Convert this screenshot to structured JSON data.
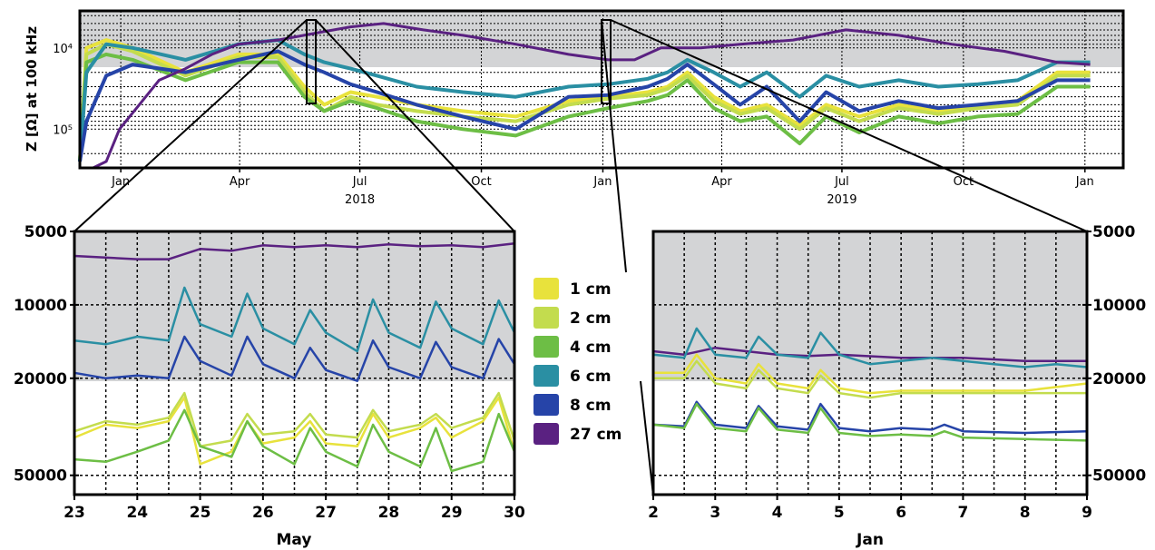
{
  "colors": {
    "1 cm": "#e8e23c",
    "2 cm": "#c3dc4e",
    "4 cm": "#6dbe45",
    "6 cm": "#2a8fa3",
    "8 cm": "#2644a8",
    "27 cm": "#5a2181",
    "band": "#d3d4d6"
  },
  "chart_data": [
    {
      "name": "overview",
      "type": "line",
      "ylabel": "Z [Ω] at 100 kHz",
      "y_scale": "log-inverted",
      "ylim": [
        300000,
        3500
      ],
      "shaded_band": [
        5000,
        20000
      ],
      "y_tick_labels": [
        "10⁴",
        "10⁵"
      ],
      "y_tick_values": [
        10000,
        100000
      ],
      "x_tick_labels": [
        "Jan",
        "Apr",
        "Jul",
        "Oct",
        "Jan",
        "Apr",
        "Jul",
        "Oct",
        "Jan"
      ],
      "x_tick_days": [
        31,
        121,
        212,
        304,
        396,
        486,
        577,
        669,
        761
      ],
      "x_year_labels": [
        "2018",
        "2019"
      ],
      "x_year_days": [
        212,
        577
      ],
      "xlim_days": [
        0,
        790
      ],
      "series": [
        {
          "name": "1 cm",
          "x_days": [
            0,
            5,
            20,
            40,
            80,
            120,
            150,
            170,
            185,
            205,
            225,
            255,
            290,
            330,
            370,
            400,
            430,
            445,
            460,
            480,
            500,
            520,
            545,
            565,
            590,
            620,
            650,
            680,
            710,
            740,
            765
          ],
          "y": [
            250000,
            10000,
            8000,
            10000,
            20000,
            12000,
            12000,
            30000,
            50000,
            35000,
            40000,
            50000,
            60000,
            70000,
            45000,
            40000,
            35000,
            30000,
            20000,
            40000,
            60000,
            50000,
            90000,
            50000,
            70000,
            50000,
            60000,
            50000,
            45000,
            20000,
            20000
          ]
        },
        {
          "name": "2 cm",
          "x_days": [
            0,
            5,
            20,
            40,
            80,
            120,
            150,
            170,
            185,
            205,
            225,
            255,
            290,
            330,
            370,
            400,
            430,
            445,
            460,
            480,
            500,
            520,
            545,
            565,
            590,
            620,
            650,
            680,
            710,
            740,
            765
          ],
          "y": [
            250000,
            12000,
            9000,
            11000,
            22000,
            13000,
            13000,
            35000,
            60000,
            40000,
            50000,
            60000,
            70000,
            80000,
            50000,
            42000,
            38000,
            32000,
            22000,
            45000,
            65000,
            55000,
            100000,
            55000,
            80000,
            55000,
            65000,
            55000,
            50000,
            22000,
            22000
          ]
        },
        {
          "name": "4 cm",
          "x_days": [
            0,
            5,
            20,
            40,
            80,
            120,
            150,
            170,
            185,
            205,
            225,
            255,
            290,
            330,
            370,
            400,
            430,
            445,
            460,
            480,
            500,
            520,
            545,
            565,
            590,
            620,
            650,
            680,
            710,
            740,
            765
          ],
          "y": [
            250000,
            15000,
            12000,
            14000,
            25000,
            15000,
            15000,
            40000,
            60000,
            45000,
            55000,
            80000,
            100000,
            120000,
            70000,
            55000,
            45000,
            38000,
            25000,
            55000,
            80000,
            70000,
            150000,
            70000,
            110000,
            70000,
            85000,
            70000,
            65000,
            30000,
            30000
          ]
        },
        {
          "name": "6 cm",
          "x_days": [
            0,
            5,
            20,
            40,
            80,
            120,
            150,
            170,
            185,
            205,
            225,
            255,
            290,
            330,
            370,
            400,
            430,
            445,
            460,
            480,
            500,
            520,
            545,
            565,
            590,
            620,
            650,
            680,
            710,
            740,
            765
          ],
          "y": [
            250000,
            20000,
            9000,
            10000,
            14000,
            9000,
            8000,
            12000,
            15000,
            18000,
            22000,
            30000,
            35000,
            40000,
            30000,
            28000,
            24000,
            20000,
            14000,
            20000,
            30000,
            20000,
            40000,
            22000,
            30000,
            25000,
            30000,
            28000,
            25000,
            15000,
            15000
          ]
        },
        {
          "name": "8 cm",
          "x_days": [
            0,
            5,
            20,
            40,
            80,
            120,
            150,
            170,
            185,
            205,
            225,
            255,
            290,
            330,
            370,
            400,
            430,
            445,
            460,
            480,
            500,
            520,
            545,
            565,
            590,
            620,
            650,
            680,
            710,
            740,
            765
          ],
          "y": [
            250000,
            80000,
            22000,
            16000,
            20000,
            14000,
            11000,
            16000,
            20000,
            28000,
            35000,
            50000,
            70000,
            100000,
            40000,
            38000,
            30000,
            24000,
            16000,
            28000,
            50000,
            30000,
            80000,
            35000,
            60000,
            45000,
            55000,
            50000,
            45000,
            25000,
            25000
          ]
        },
        {
          "name": "27 cm",
          "x_days": [
            10,
            20,
            30,
            45,
            60,
            80,
            100,
            120,
            150,
            180,
            205,
            230,
            260,
            290,
            330,
            370,
            400,
            420,
            440,
            470,
            500,
            540,
            580,
            620,
            660,
            700,
            740,
            765
          ],
          "y": [
            300000,
            250000,
            100000,
            50000,
            25000,
            18000,
            12000,
            9000,
            8000,
            6500,
            5500,
            5000,
            6000,
            7000,
            9000,
            12000,
            14000,
            14000,
            10000,
            10000,
            9000,
            8000,
            6000,
            7000,
            9000,
            11000,
            15000,
            16000
          ]
        }
      ]
    },
    {
      "name": "may-zoom",
      "type": "line",
      "y_scale": "log-inverted",
      "ylim": [
        60000,
        5000
      ],
      "shaded_band": [
        5000,
        20000
      ],
      "y_tick_labels": [
        "5000",
        "10000",
        "20000",
        "50000"
      ],
      "y_tick_values": [
        5000,
        10000,
        20000,
        50000
      ],
      "x_tick_labels": [
        "23",
        "24",
        "25",
        "26",
        "27",
        "28",
        "29",
        "30"
      ],
      "xlim": [
        23,
        30
      ],
      "xlabel": "May",
      "series": [
        {
          "name": "27 cm",
          "x": [
            23,
            24,
            24.5,
            25,
            25.5,
            26,
            26.5,
            27,
            27.5,
            28,
            28.5,
            29,
            29.5,
            30
          ],
          "y": [
            6300,
            6500,
            6500,
            5900,
            6000,
            5700,
            5800,
            5700,
            5800,
            5650,
            5750,
            5700,
            5800,
            5600
          ]
        },
        {
          "name": "6 cm",
          "x": [
            23,
            23.5,
            24,
            24.5,
            24.75,
            25,
            25.5,
            25.75,
            26,
            26.5,
            26.75,
            27,
            27.5,
            27.75,
            28,
            28.5,
            28.75,
            29,
            29.5,
            29.75,
            30
          ],
          "y": [
            14000,
            14500,
            13500,
            14000,
            8500,
            12000,
            13500,
            9000,
            12500,
            14500,
            10500,
            13000,
            15500,
            9500,
            13000,
            15000,
            9700,
            12500,
            14500,
            9600,
            13000
          ]
        },
        {
          "name": "8 cm",
          "x": [
            23,
            23.5,
            24,
            24.5,
            24.75,
            25,
            25.5,
            25.75,
            26,
            26.5,
            26.75,
            27,
            27.5,
            27.75,
            28,
            28.5,
            28.75,
            29,
            29.5,
            29.75,
            30
          ],
          "y": [
            19000,
            20000,
            19500,
            20000,
            13500,
            17000,
            19500,
            13500,
            17500,
            20000,
            15000,
            18500,
            20500,
            14000,
            18000,
            20000,
            14200,
            18000,
            20000,
            13800,
            17500
          ]
        },
        {
          "name": "1 cm",
          "x": [
            23,
            23.5,
            24,
            24.5,
            24.75,
            25,
            25.5,
            25.75,
            26,
            26.5,
            26.75,
            27,
            27.5,
            27.75,
            28,
            28.5,
            28.75,
            29,
            29.5,
            29.75,
            30
          ],
          "y": [
            35000,
            31000,
            32000,
            30000,
            24000,
            45000,
            40000,
            30000,
            37000,
            35000,
            30000,
            37000,
            38000,
            28000,
            35000,
            32000,
            29000,
            35000,
            30000,
            24000,
            40000
          ]
        },
        {
          "name": "2 cm",
          "x": [
            23,
            23.5,
            24,
            24.5,
            24.75,
            25,
            25.5,
            25.75,
            26,
            26.5,
            26.75,
            27,
            27.5,
            27.75,
            28,
            28.5,
            28.75,
            29,
            29.5,
            29.75,
            30
          ],
          "y": [
            33000,
            30000,
            31000,
            29000,
            23000,
            38000,
            36000,
            28000,
            34000,
            33000,
            28000,
            34000,
            35000,
            27000,
            33000,
            31000,
            28000,
            32000,
            29000,
            23000,
            36000
          ]
        },
        {
          "name": "4 cm",
          "x": [
            23,
            23.5,
            24,
            24.5,
            24.75,
            25,
            25.5,
            25.75,
            26,
            26.5,
            26.75,
            27,
            27.5,
            27.75,
            28,
            28.5,
            28.75,
            29,
            29.5,
            29.75,
            30
          ],
          "y": [
            43000,
            44000,
            40000,
            36000,
            27000,
            38000,
            42000,
            30000,
            38000,
            45000,
            32000,
            40000,
            46000,
            31000,
            40000,
            46000,
            32000,
            48000,
            44000,
            28000,
            40000
          ]
        }
      ]
    },
    {
      "name": "jan-zoom",
      "type": "line",
      "y_scale": "log-inverted",
      "ylim": [
        60000,
        5000
      ],
      "shaded_band": [
        5000,
        20000
      ],
      "y_tick_labels": [
        "5000",
        "10000",
        "20000",
        "50000"
      ],
      "y_tick_values": [
        5000,
        10000,
        20000,
        50000
      ],
      "x_tick_labels": [
        "2",
        "3",
        "4",
        "5",
        "6",
        "7",
        "8",
        "9"
      ],
      "xlim": [
        2,
        9
      ],
      "xlabel": "Jan",
      "series": [
        {
          "name": "27 cm",
          "x": [
            2,
            2.5,
            3,
            3.5,
            4,
            4.5,
            5,
            6,
            7,
            8,
            9
          ],
          "y": [
            15500,
            16000,
            15000,
            15500,
            16000,
            16200,
            16000,
            16500,
            16500,
            17000,
            17000
          ]
        },
        {
          "name": "6 cm",
          "x": [
            2,
            2.5,
            2.7,
            3,
            3.5,
            3.7,
            4,
            4.5,
            4.7,
            5,
            5.5,
            6,
            6.5,
            7,
            7.5,
            8,
            8.5,
            9
          ],
          "y": [
            16000,
            16500,
            12500,
            16000,
            16500,
            13500,
            16000,
            16500,
            13000,
            16000,
            17500,
            17000,
            16500,
            17000,
            17500,
            18000,
            17500,
            18000
          ]
        },
        {
          "name": "1 cm",
          "x": [
            2,
            2.5,
            2.7,
            3,
            3.5,
            3.7,
            4,
            4.5,
            4.7,
            5,
            5.5,
            6,
            7,
            8,
            9
          ],
          "y": [
            19000,
            19000,
            16000,
            20000,
            21000,
            17500,
            21000,
            22000,
            18500,
            22000,
            23000,
            22500,
            22500,
            22500,
            21000
          ]
        },
        {
          "name": "2 cm",
          "x": [
            2,
            2.5,
            2.7,
            3,
            3.5,
            3.7,
            4,
            4.5,
            4.7,
            5,
            5.5,
            6,
            7,
            8,
            9
          ],
          "y": [
            20000,
            20000,
            17000,
            21000,
            22000,
            18500,
            22000,
            23000,
            19500,
            23000,
            24000,
            23000,
            23000,
            23000,
            23000
          ]
        },
        {
          "name": "8 cm",
          "x": [
            2,
            2.5,
            2.7,
            3,
            3.5,
            3.7,
            4,
            4.5,
            4.7,
            5,
            5.5,
            6,
            6.5,
            6.7,
            7,
            8,
            9
          ],
          "y": [
            31000,
            31500,
            25000,
            31000,
            32000,
            26000,
            31500,
            32500,
            25500,
            32000,
            33000,
            32000,
            32500,
            31000,
            33000,
            33500,
            33000
          ]
        },
        {
          "name": "4 cm",
          "x": [
            2,
            2.5,
            2.7,
            3,
            3.5,
            3.7,
            4,
            4.5,
            4.7,
            5,
            5.5,
            6,
            6.5,
            6.7,
            7,
            8,
            9
          ],
          "y": [
            31000,
            32000,
            25500,
            32000,
            33000,
            26500,
            32500,
            33500,
            26500,
            33500,
            34500,
            34000,
            34500,
            33000,
            35000,
            35500,
            36000
          ]
        }
      ]
    }
  ],
  "legend": {
    "entries": [
      "1 cm",
      "2 cm",
      "4 cm",
      "6 cm",
      "8 cm",
      "27 cm"
    ]
  }
}
